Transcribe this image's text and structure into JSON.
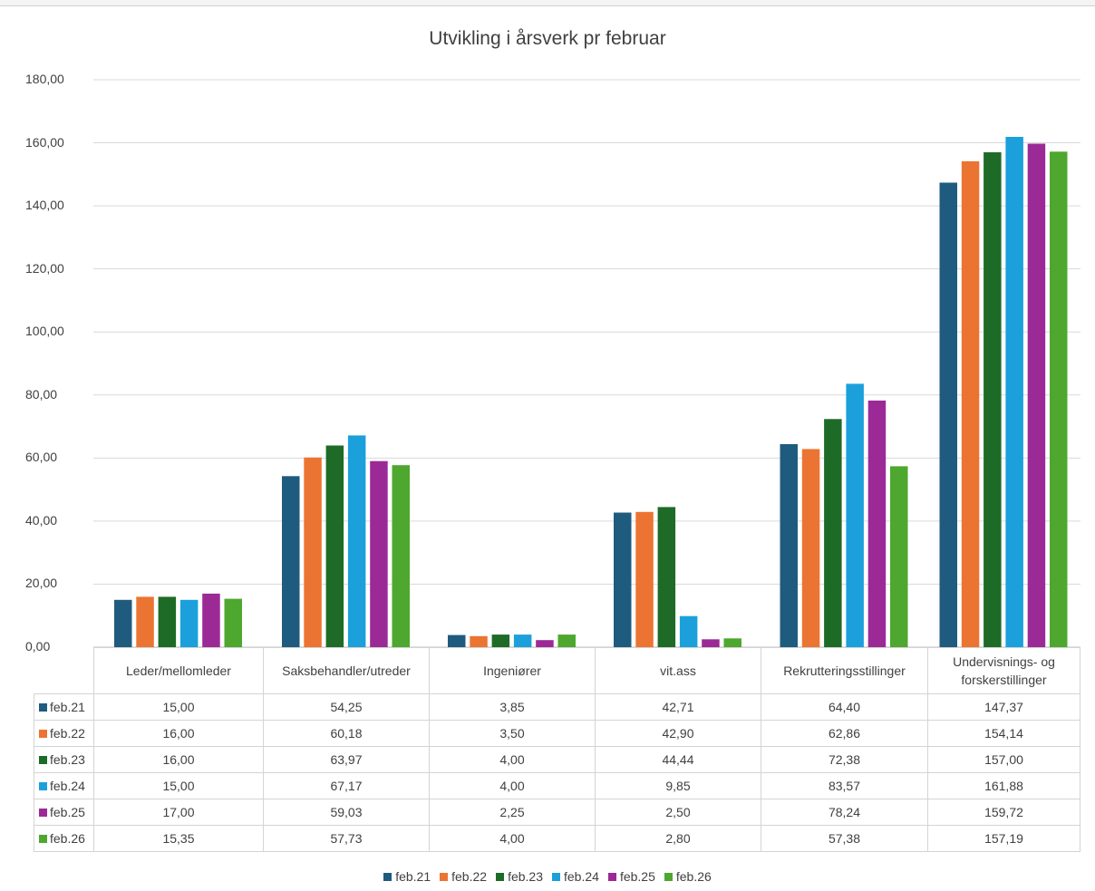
{
  "chart_data": {
    "type": "bar",
    "title": "Utvikling i årsverk pr februar",
    "categories": [
      "Leder/mellomleder",
      "Saksbehandler/utreder",
      "Ingeniører",
      "vit.ass",
      "Rekrutteringsstillinger",
      "Undervisnings- og forskerstillinger"
    ],
    "series": [
      {
        "name": "feb.21",
        "color": "#1f5b7e",
        "values": [
          15.0,
          54.25,
          3.85,
          42.71,
          64.4,
          147.37
        ]
      },
      {
        "name": "feb.22",
        "color": "#ec7433",
        "values": [
          16.0,
          60.18,
          3.5,
          42.9,
          62.86,
          154.14
        ]
      },
      {
        "name": "feb.23",
        "color": "#1e6b27",
        "values": [
          16.0,
          63.97,
          4.0,
          44.44,
          72.38,
          157.0
        ]
      },
      {
        "name": "feb.24",
        "color": "#1ca0dc",
        "values": [
          15.0,
          67.17,
          4.0,
          9.85,
          83.57,
          161.88
        ]
      },
      {
        "name": "feb.25",
        "color": "#9c2a96",
        "values": [
          17.0,
          59.03,
          2.25,
          2.5,
          78.24,
          159.72
        ]
      },
      {
        "name": "feb.26",
        "color": "#4ea72e",
        "values": [
          15.35,
          57.73,
          4.0,
          2.8,
          57.38,
          157.19
        ]
      }
    ],
    "ylim": [
      0,
      180
    ],
    "y_ticks": [
      "0,00",
      "20,00",
      "40,00",
      "60,00",
      "80,00",
      "100,00",
      "120,00",
      "140,00",
      "160,00",
      "180,00"
    ],
    "table": {
      "rows": [
        [
          "15,00",
          "54,25",
          "3,85",
          "42,71",
          "64,40",
          "147,37"
        ],
        [
          "16,00",
          "60,18",
          "3,50",
          "42,90",
          "62,86",
          "154,14"
        ],
        [
          "16,00",
          "63,97",
          "4,00",
          "44,44",
          "72,38",
          "157,00"
        ],
        [
          "15,00",
          "67,17",
          "4,00",
          "9,85",
          "83,57",
          "161,88"
        ],
        [
          "17,00",
          "59,03",
          "2,25",
          "2,50",
          "78,24",
          "159,72"
        ],
        [
          "15,35",
          "57,73",
          "4,00",
          "2,80",
          "57,38",
          "157,19"
        ]
      ]
    },
    "grid": true,
    "legend": "bottom"
  }
}
